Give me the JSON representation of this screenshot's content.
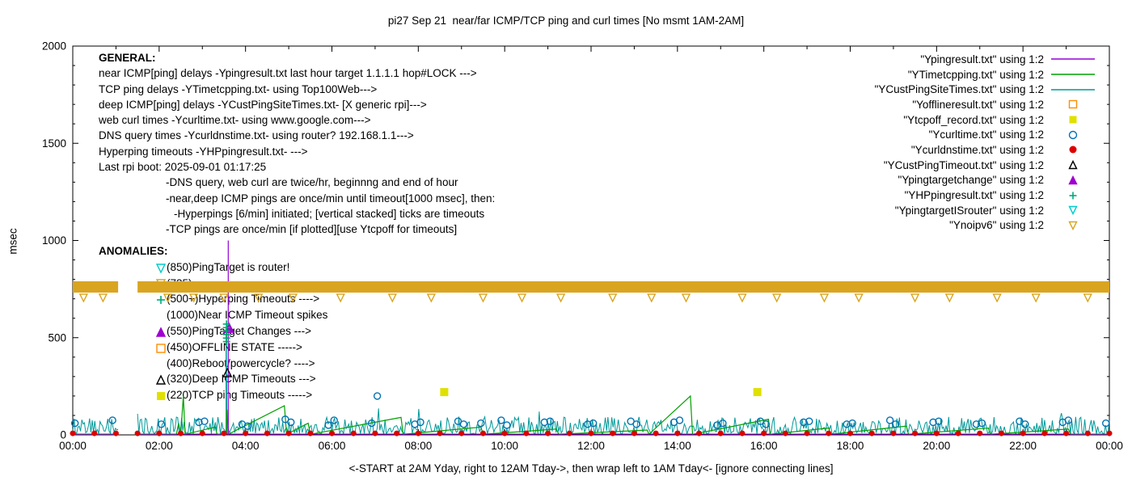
{
  "title": "pi27 Sep 21  near/far ICMP/TCP ping and curl times [No msmt 1AM-2AM]",
  "ylabel": "msec",
  "xlabel": "<-START at 2AM Yday, right to 12AM Tday->, then wrap left to 1AM Tday<- [ignore connecting lines]",
  "general": {
    "header": "GENERAL:",
    "lines": [
      "near ICMP[ping] delays -Ypingresult.txt last hour target 1.1.1.1 hop#LOCK --->",
      "TCP ping delays -YTimetcpping.txt- using Top100Web--->",
      "deep ICMP[ping] delays -YCustPingSiteTimes.txt- [X generic rpi]--->",
      "web curl times -Ycurltime.txt- using www.google.com--->",
      "DNS query times -Ycurldnstime.txt- using router? 192.168.1.1--->",
      "Hyperping timeouts -YHPpingresult.txt- --->",
      "Last rpi boot: 2025-09-01 01:17:25",
      "-DNS query, web curl are twice/hr, beginnng and end of hour",
      "-near,deep ICMP pings are once/min until timeout[1000 msec], then:",
      "-Hyperpings [6/min] initiated; [vertical stacked] ticks are timeouts",
      "-TCP pings are once/min [if plotted][use Ytcpoff for timeouts]"
    ]
  },
  "anomalies": {
    "header": "ANOMALIES:",
    "items": [
      {
        "marker": "triangle-down-open",
        "color": "#00cccc",
        "text": "(850)PingTarget is router!"
      },
      {
        "marker": "triangle-down-open",
        "color": "#d9a520",
        "text": "(735)"
      },
      {
        "marker": "plus",
        "color": "#00a878",
        "text": "(500+)Hyperping Timeouts ---->"
      },
      {
        "marker": "none",
        "color": "#000000",
        "text": "(1000)Near ICMP Timeout spikes"
      },
      {
        "marker": "triangle-filled",
        "color": "#a000d0",
        "text": "(550)PingTarget Changes --->"
      },
      {
        "marker": "square-open",
        "color": "#ff8c00",
        "text": "(450)OFFLINE STATE ----->"
      },
      {
        "marker": "none",
        "color": "#000000",
        "text": "(400)Reboot/powercycle? ---->"
      },
      {
        "marker": "triangle-open",
        "color": "#000000",
        "text": "(320)Deep ICMP Timeouts --->"
      },
      {
        "marker": "square-filled",
        "color": "#e0e000",
        "text": "(220)TCP ping Timeouts ----->"
      }
    ]
  },
  "legend": {
    "items": [
      {
        "label": "\"Ypingresult.txt\" using 1:2",
        "sample": "line",
        "color": "#9400d3"
      },
      {
        "label": "\"YTimetcpping.txt\" using 1:2",
        "sample": "line",
        "color": "#00a000"
      },
      {
        "label": "\"YCustPingSiteTimes.txt\" using 1:2",
        "sample": "line",
        "color": "#009999"
      },
      {
        "label": "\"Yofflineresult.txt\" using 1:2",
        "sample": "square-open",
        "color": "#ff8c00"
      },
      {
        "label": "\"Ytcpoff_record.txt\" using 1:2",
        "sample": "square-filled",
        "color": "#e0e000"
      },
      {
        "label": "\"Ycurltime.txt\" using 1:2",
        "sample": "circle-open",
        "color": "#0072b2"
      },
      {
        "label": "\"Ycurldnstime.txt\" using 1:2",
        "sample": "circle-filled",
        "color": "#dd0000"
      },
      {
        "label": "\"YCustPingTimeout.txt\" using 1:2",
        "sample": "triangle-open",
        "color": "#000000"
      },
      {
        "label": "\"Ypingtargetchange\" using 1:2",
        "sample": "triangle-filled",
        "color": "#a000d0"
      },
      {
        "label": "\"YHPpingresult.txt\" using 1:2",
        "sample": "plus",
        "color": "#00a878"
      },
      {
        "label": "\"YpingtargetISrouter\" using 1:2",
        "sample": "triangle-down-open",
        "color": "#00cccc"
      },
      {
        "label": "\"Ynoipv6\" using 1:2",
        "sample": "triangle-down-open",
        "color": "#d9a520"
      }
    ]
  },
  "chart_data": {
    "type": "line",
    "xlim": [
      0,
      24
    ],
    "ylim": [
      0,
      2000
    ],
    "x_ticks": [
      {
        "x": 0,
        "label": "00:00"
      },
      {
        "x": 2,
        "label": "02:00"
      },
      {
        "x": 4,
        "label": "04:00"
      },
      {
        "x": 6,
        "label": "06:00"
      },
      {
        "x": 8,
        "label": "08:00"
      },
      {
        "x": 10,
        "label": "10:00"
      },
      {
        "x": 12,
        "label": "12:00"
      },
      {
        "x": 14,
        "label": "14:00"
      },
      {
        "x": 16,
        "label": "16:00"
      },
      {
        "x": 18,
        "label": "18:00"
      },
      {
        "x": 20,
        "label": "20:00"
      },
      {
        "x": 22,
        "label": "22:00"
      },
      {
        "x": 24,
        "label": "00:00"
      }
    ],
    "x_minor_step": 1,
    "y_ticks": [
      0,
      500,
      1000,
      1500,
      2000
    ],
    "y_minor_step": 100,
    "gap": [
      1.05,
      1.5
    ],
    "series": [
      {
        "name": "YCustPingSiteTimes.txt",
        "color": "#009999",
        "style": "noise",
        "noise": {
          "base": 5,
          "amp": 88,
          "step": 0.03,
          "seed": 20250921,
          "spike_every": 31,
          "spike_amp": 60
        },
        "extra_segments": [
          [
            [
              3.55,
              5
            ],
            [
              3.55,
              555
            ],
            [
              3.57,
              5
            ]
          ]
        ]
      },
      {
        "name": "YTimetcpping.txt",
        "color": "#00a000",
        "style": "line",
        "segments": [
          [
            [
              0,
              3
            ],
            [
              1.05,
              3
            ]
          ],
          [
            [
              1.5,
              3
            ],
            [
              2.4,
              3
            ],
            [
              2.45,
              60
            ],
            [
              2.5,
              3
            ],
            [
              2.56,
              200
            ],
            [
              2.6,
              3
            ],
            [
              3.3,
              40
            ],
            [
              3.34,
              3
            ],
            [
              3.55,
              3
            ],
            [
              3.57,
              130
            ],
            [
              3.6,
              3
            ],
            [
              4.9,
              150
            ],
            [
              4.95,
              3
            ],
            [
              5.45,
              60
            ],
            [
              5.5,
              3
            ],
            [
              7.6,
              90
            ],
            [
              7.65,
              3
            ],
            [
              9.45,
              40
            ],
            [
              9.5,
              3
            ],
            [
              11.2,
              30
            ],
            [
              11.25,
              3
            ],
            [
              13.3,
              25
            ],
            [
              13.34,
              3
            ],
            [
              14.3,
              200
            ],
            [
              14.35,
              3
            ],
            [
              16.1,
              80
            ],
            [
              16.15,
              3
            ],
            [
              17.5,
              35
            ],
            [
              17.55,
              3
            ],
            [
              19.3,
              45
            ],
            [
              19.35,
              3
            ],
            [
              21.2,
              35
            ],
            [
              21.25,
              3
            ],
            [
              23.05,
              30
            ],
            [
              23.1,
              3
            ],
            [
              24,
              3
            ]
          ]
        ]
      },
      {
        "name": "Ypingresult.txt",
        "color": "#9400d3",
        "style": "line",
        "segments": [
          [
            [
              0,
              4
            ],
            [
              1.05,
              4
            ]
          ],
          [
            [
              1.5,
              4
            ],
            [
              3.6,
              4
            ],
            [
              3.6,
              1000
            ],
            [
              3.6,
              4
            ],
            [
              24,
              4
            ]
          ]
        ]
      },
      {
        "name": "Ycurltime.txt",
        "color": "#0072b2",
        "style": "circle-open",
        "size": 4,
        "points": [
          [
            0.05,
            60
          ],
          [
            0.92,
            75
          ],
          [
            2.05,
            55
          ],
          [
            2.92,
            65
          ],
          [
            3.05,
            70
          ],
          [
            3.92,
            55
          ],
          [
            4.05,
            45
          ],
          [
            4.92,
            80
          ],
          [
            5.05,
            65
          ],
          [
            5.92,
            50
          ],
          [
            6.05,
            75
          ],
          [
            6.92,
            60
          ],
          [
            7.05,
            200
          ],
          [
            7.92,
            55
          ],
          [
            8.05,
            65
          ],
          [
            8.92,
            70
          ],
          [
            9.05,
            55
          ],
          [
            9.45,
            60
          ],
          [
            9.92,
            75
          ],
          [
            10.05,
            50
          ],
          [
            10.92,
            65
          ],
          [
            11.05,
            70
          ],
          [
            11.92,
            55
          ],
          [
            12.05,
            60
          ],
          [
            12.92,
            70
          ],
          [
            13.05,
            55
          ],
          [
            13.92,
            65
          ],
          [
            14.05,
            75
          ],
          [
            14.92,
            50
          ],
          [
            15.05,
            60
          ],
          [
            15.92,
            70
          ],
          [
            16.05,
            55
          ],
          [
            16.92,
            65
          ],
          [
            17.05,
            70
          ],
          [
            17.92,
            55
          ],
          [
            18.05,
            60
          ],
          [
            18.92,
            75
          ],
          [
            19.05,
            55
          ],
          [
            19.92,
            65
          ],
          [
            20.05,
            70
          ],
          [
            20.92,
            55
          ],
          [
            21.05,
            60
          ],
          [
            21.92,
            70
          ],
          [
            22.05,
            55
          ],
          [
            22.92,
            65
          ],
          [
            23.05,
            75
          ],
          [
            23.92,
            60
          ]
        ]
      },
      {
        "name": "Ycurldnstime.txt",
        "color": "#dd0000",
        "style": "circle-filled",
        "size": 3.5,
        "periodic": {
          "from": 0,
          "to": 24,
          "step": 0.5,
          "y": 8
        }
      },
      {
        "name": "Ytcpoff_record.txt",
        "color": "#e0e000",
        "style": "square-filled",
        "size": 5,
        "points": [
          [
            8.6,
            220
          ],
          [
            15.85,
            220
          ]
        ]
      },
      {
        "name": "Yofflineresult.txt",
        "color": "#ff8c00",
        "style": "square-open",
        "size": 5,
        "points": []
      },
      {
        "name": "YCustPingTimeout.txt",
        "color": "#000000",
        "style": "triangle-open",
        "size": 5,
        "points": [
          [
            3.58,
            320
          ]
        ]
      },
      {
        "name": "Ypingtargetchange",
        "color": "#a000d0",
        "style": "triangle-filled",
        "size": 5.5,
        "points": [
          [
            3.62,
            550
          ]
        ]
      },
      {
        "name": "YHPpingresult.txt",
        "color": "#00a878",
        "style": "plus",
        "size": 4.5,
        "points": [
          [
            3.56,
            480
          ],
          [
            3.56,
            498
          ],
          [
            3.56,
            516
          ],
          [
            3.56,
            534
          ],
          [
            3.56,
            552
          ],
          [
            3.56,
            570
          ]
        ]
      },
      {
        "name": "YpingtargetISrouter",
        "color": "#00cccc",
        "style": "triangle-down-open",
        "size": 5,
        "points": []
      }
    ],
    "band": {
      "name": "Ynoipv6",
      "color": "#d9a520",
      "y_low": 732,
      "y_high": 790,
      "segments": [
        [
          0,
          1.05
        ],
        [
          1.5,
          24
        ]
      ],
      "hang_xs": [
        0.25,
        0.7,
        2.2,
        2.8,
        3.5,
        4.3,
        5.1,
        6.2,
        7.4,
        8.3,
        9.5,
        10.4,
        11.3,
        12.5,
        13.4,
        14.2,
        15.5,
        16.3,
        17.4,
        18.2,
        19.5,
        20.3,
        21.4,
        22.3,
        23.5
      ],
      "hang_y": 705
    }
  }
}
